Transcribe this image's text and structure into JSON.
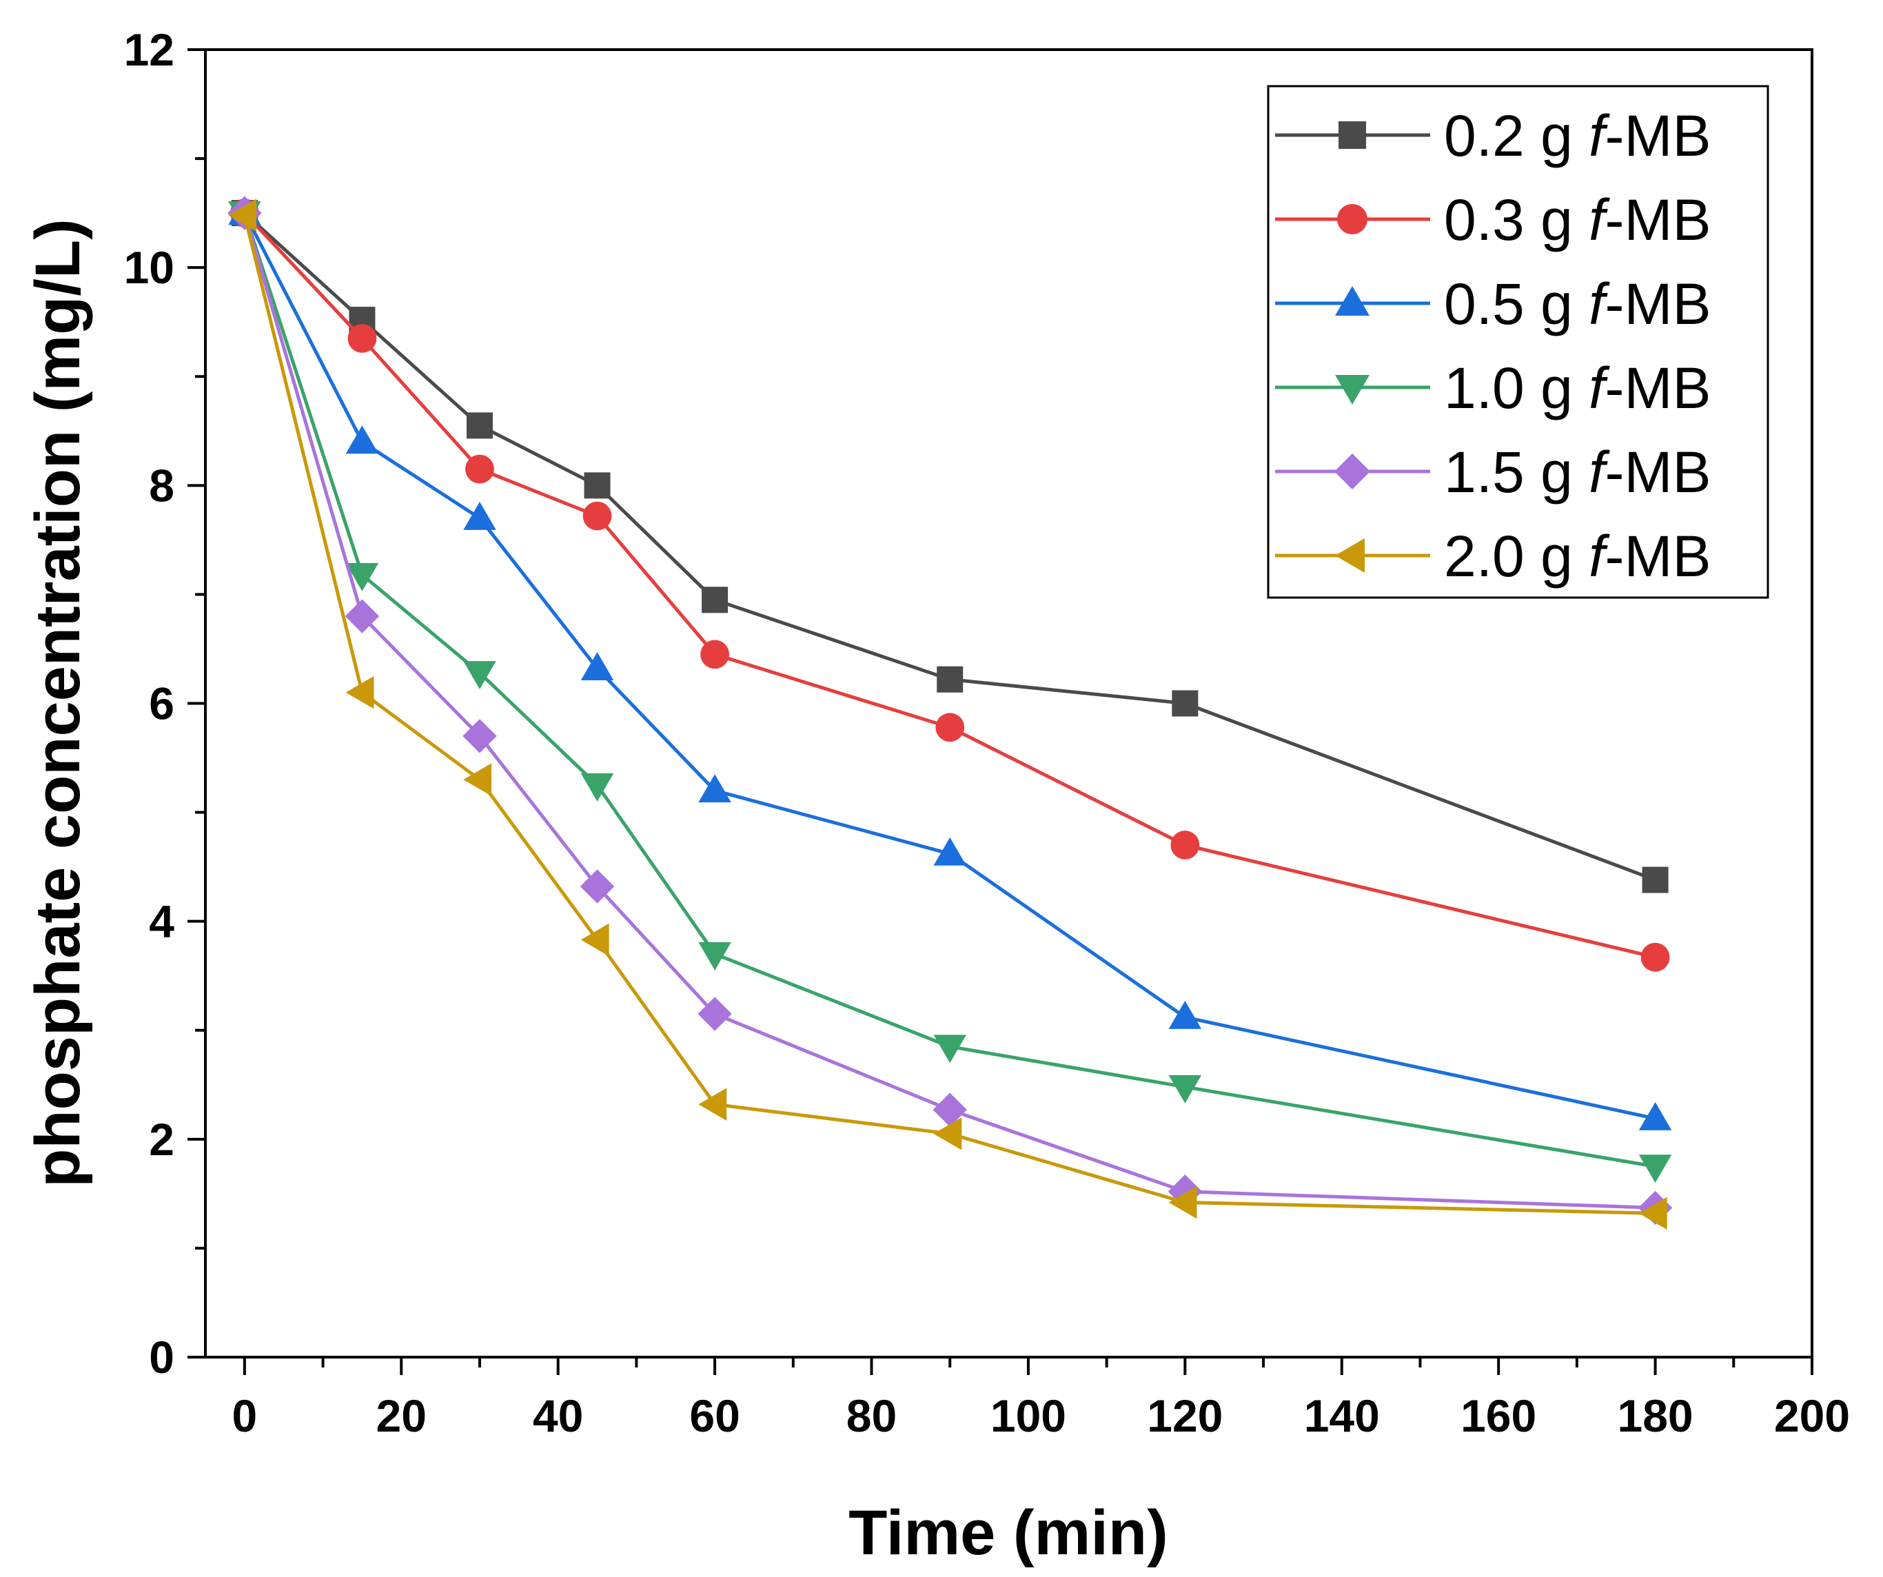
{
  "chart_data": {
    "type": "line",
    "xlabel": "Time (min)",
    "ylabel": "phosphate concentration (mg/L)",
    "xlim": [
      -5,
      200
    ],
    "ylim": [
      0,
      12
    ],
    "xticks": [
      "0",
      "20",
      "40",
      "60",
      "80",
      "100",
      "120",
      "140",
      "160",
      "180",
      "200"
    ],
    "yticks": [
      "0",
      "2",
      "4",
      "6",
      "8",
      "10",
      "12"
    ],
    "grid": false,
    "legend_position": "top-right",
    "x": [
      0,
      15,
      30,
      45,
      60,
      90,
      120,
      180
    ],
    "series": [
      {
        "name": "0.2 g ",
        "name_italic": "f",
        "name_suffix": "-MB",
        "color": "#4a4a4a",
        "marker": "square",
        "values": [
          10.5,
          9.52,
          8.55,
          8.0,
          6.95,
          6.22,
          6.0,
          4.38
        ]
      },
      {
        "name": "0.3 g ",
        "name_italic": "f",
        "name_suffix": "-MB",
        "color": "#e63e3e",
        "marker": "circle",
        "values": [
          10.5,
          9.35,
          8.15,
          7.72,
          6.45,
          5.78,
          4.7,
          3.67
        ]
      },
      {
        "name": "0.5 g ",
        "name_italic": "f",
        "name_suffix": "-MB",
        "color": "#1b6fdc",
        "marker": "triangle-up",
        "values": [
          10.5,
          8.4,
          7.7,
          6.32,
          5.2,
          4.62,
          3.12,
          2.19
        ]
      },
      {
        "name": "1.0 g ",
        "name_italic": "f",
        "name_suffix": "-MB",
        "color": "#3aa36a",
        "marker": "triangle-down",
        "values": [
          10.5,
          7.18,
          6.28,
          5.25,
          3.7,
          2.85,
          2.48,
          1.75
        ]
      },
      {
        "name": "1.5 g ",
        "name_italic": "f",
        "name_suffix": "-MB",
        "color": "#a874dc",
        "marker": "diamond",
        "values": [
          10.5,
          6.8,
          5.7,
          4.32,
          3.15,
          2.27,
          1.52,
          1.37
        ]
      },
      {
        "name": "2.0 g ",
        "name_italic": "f",
        "name_suffix": "-MB",
        "color": "#c9990a",
        "marker": "triangle-left",
        "values": [
          10.48,
          6.1,
          5.3,
          3.83,
          2.32,
          2.05,
          1.42,
          1.32
        ]
      }
    ]
  }
}
